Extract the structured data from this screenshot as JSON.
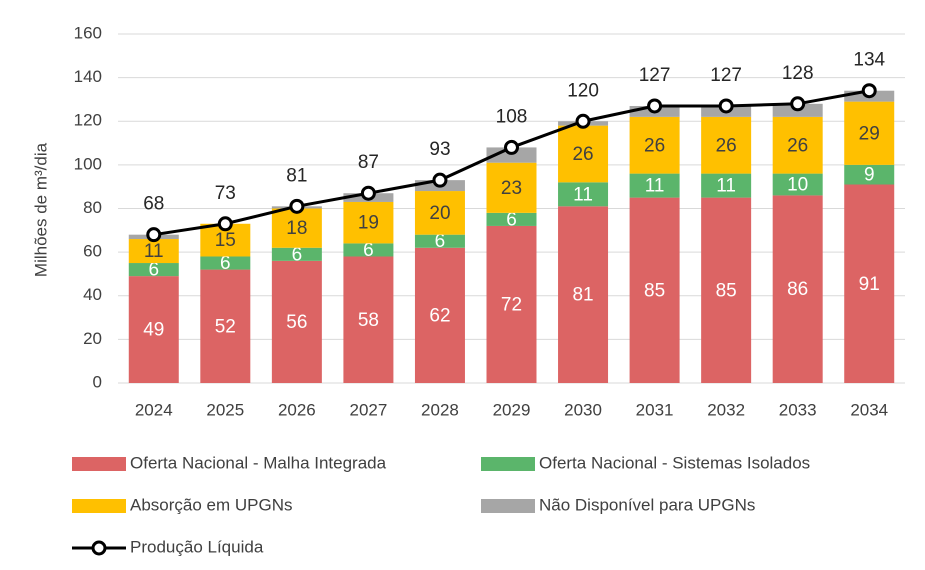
{
  "chart_data": {
    "type": "bar",
    "stacked": true,
    "y_label": "Milhões de m³/dia",
    "categories": [
      "2024",
      "2025",
      "2026",
      "2027",
      "2028",
      "2029",
      "2030",
      "2031",
      "2032",
      "2033",
      "2034"
    ],
    "ylim": [
      0,
      160
    ],
    "yticks": [
      0,
      20,
      40,
      60,
      80,
      100,
      120,
      140,
      160
    ],
    "grid": true,
    "series": [
      {
        "name": "Oferta Nacional - Malha Integrada",
        "type": "bar",
        "color": "#dc6464",
        "data_labels": true,
        "values": [
          49,
          52,
          56,
          58,
          62,
          72,
          81,
          85,
          85,
          86,
          91
        ]
      },
      {
        "name": "Oferta Nacional - Sistemas Isolados",
        "type": "bar",
        "color": "#5bb56b",
        "data_labels": true,
        "values": [
          6,
          6,
          6,
          6,
          6,
          6,
          11,
          11,
          11,
          10,
          9
        ]
      },
      {
        "name": "Absorção em UPGNs",
        "type": "bar",
        "color": "#ffc000",
        "data_labels": true,
        "values": [
          11,
          15,
          18,
          19,
          20,
          23,
          26,
          26,
          26,
          26,
          29
        ]
      },
      {
        "name": "Não Disponível para UPGNs",
        "type": "bar",
        "color": "#a6a6a6",
        "data_labels": false,
        "values": [
          2,
          0,
          1,
          4,
          5,
          7,
          2,
          5,
          5,
          6,
          5
        ]
      },
      {
        "name": "Produção Líquida",
        "type": "line",
        "color": "#000000",
        "data_labels": true,
        "values": [
          68,
          73,
          81,
          87,
          93,
          108,
          120,
          127,
          127,
          128,
          134
        ]
      }
    ]
  }
}
